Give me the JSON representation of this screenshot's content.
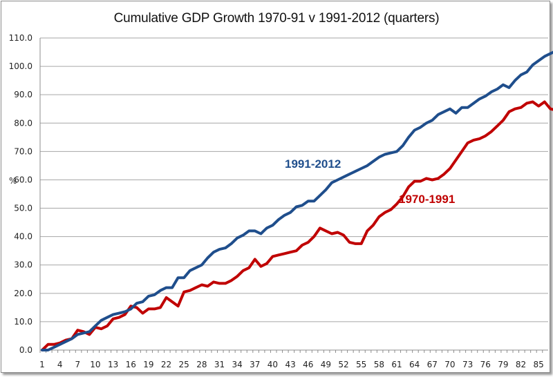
{
  "chart_data": {
    "type": "line",
    "title": "Cumulative GDP Growth 1970-91 v 1991-2012  (quarters)",
    "xlabel": "",
    "ylabel": "%",
    "ylim": [
      0,
      110
    ],
    "yticks": [
      "0.0",
      "10.0",
      "20.0",
      "30.0",
      "40.0",
      "50.0",
      "60.0",
      "70.0",
      "80.0",
      "90.0",
      "100.0",
      "110.0"
    ],
    "xlim": [
      1,
      87
    ],
    "xticks": [
      "1",
      "4",
      "7",
      "10",
      "13",
      "16",
      "19",
      "22",
      "25",
      "28",
      "31",
      "34",
      "37",
      "40",
      "43",
      "46",
      "49",
      "52",
      "55",
      "58",
      "61",
      "64",
      "67",
      "70",
      "73",
      "76",
      "79",
      "82",
      "85"
    ],
    "grid": "horizontal",
    "legend": "inline-labels",
    "series": [
      {
        "name": "1991-2012",
        "color": "#1f4e8c",
        "label_color": "#1f4e8c",
        "values": [
          0,
          0,
          1,
          2,
          3,
          4,
          5.5,
          6,
          6.5,
          8.5,
          10.5,
          11.5,
          12.5,
          13,
          13.5,
          14.5,
          16.5,
          17,
          19,
          19.5,
          21,
          22,
          22,
          25.5,
          25.5,
          28,
          29,
          30,
          32.5,
          34.5,
          35.5,
          36,
          37.5,
          39.5,
          40.5,
          42,
          42,
          41,
          43,
          44,
          46,
          47.5,
          48.5,
          50.5,
          51,
          52.5,
          52.5,
          54.5,
          56.5,
          59,
          60,
          61,
          62,
          63,
          64,
          65,
          66.5,
          68,
          69,
          69.5,
          70,
          72,
          75,
          77.5,
          78.5,
          80,
          81,
          83,
          84,
          85,
          83.5,
          85.5,
          85.5,
          87,
          88.5,
          89.5,
          91,
          92,
          93.5,
          92.5,
          95,
          97,
          98,
          100.5,
          102,
          103.5,
          104.5,
          105.5
        ]
      },
      {
        "name": "1970-1991",
        "color": "#c00000",
        "label_color": "#c00000",
        "values": [
          0,
          2,
          2,
          2.5,
          3.5,
          4,
          7,
          6.5,
          5.5,
          8,
          7.5,
          8.5,
          11,
          11.5,
          12.5,
          15.5,
          15,
          13,
          14.5,
          14.5,
          15,
          18.5,
          17,
          15.5,
          20.5,
          21,
          22,
          23,
          22.5,
          24,
          23.5,
          23.5,
          24.5,
          26,
          28,
          29,
          32,
          29.5,
          30.5,
          33,
          33.5,
          34,
          34.5,
          35,
          37,
          38,
          40,
          43,
          42,
          41,
          41.5,
          40.5,
          38,
          37.5,
          37.5,
          42,
          44,
          47,
          48.5,
          49.5,
          51.5,
          54,
          57.5,
          59.5,
          59.5,
          60.5,
          60,
          60.5,
          62,
          64,
          67,
          70,
          73,
          74,
          74.5,
          75.5,
          77,
          79,
          81,
          84,
          85,
          85.5,
          87,
          87.5,
          86,
          87.5,
          85,
          84.5
        ]
      }
    ]
  },
  "series_labels": {
    "blue": "1991-2012",
    "red": "1970-1991"
  }
}
